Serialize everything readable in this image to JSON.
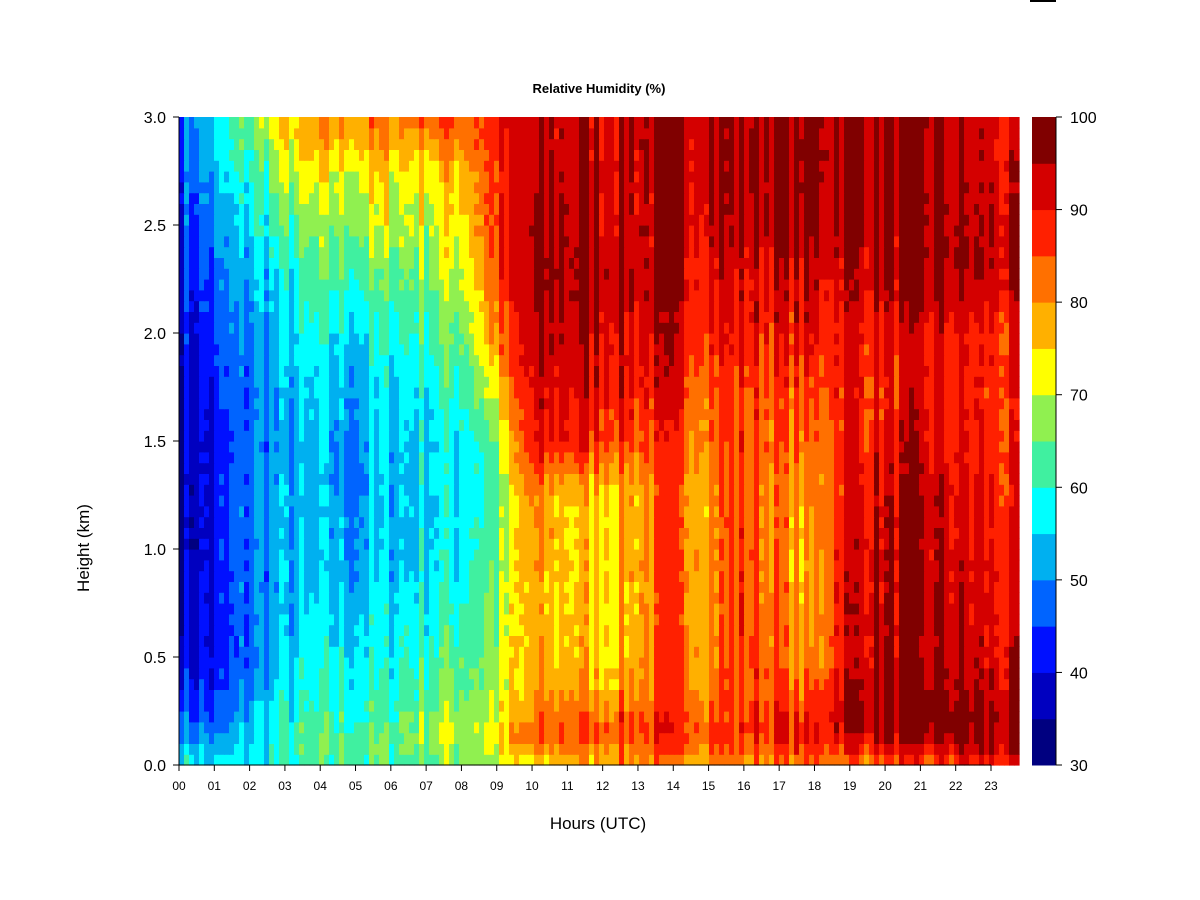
{
  "chart_data": {
    "type": "heatmap",
    "title": "Relative Humidity (%)",
    "xlabel": "Hours (UTC)",
    "ylabel": "Height (km)",
    "x_ticks": [
      "00",
      "01",
      "02",
      "03",
      "04",
      "05",
      "06",
      "07",
      "08",
      "09",
      "10",
      "11",
      "12",
      "13",
      "14",
      "15",
      "16",
      "17",
      "18",
      "19",
      "20",
      "21",
      "22",
      "23"
    ],
    "xlim": [
      0,
      24
    ],
    "y_ticks": [
      "0.0",
      "0.5",
      "1.0",
      "1.5",
      "2.0",
      "2.5",
      "3.0"
    ],
    "ylim": [
      0,
      3.0
    ],
    "colorbar": {
      "ticks": [
        "30",
        "40",
        "50",
        "60",
        "70",
        "80",
        "90",
        "100"
      ],
      "range": [
        30,
        100
      ],
      "levels": [
        30,
        35,
        40,
        45,
        50,
        55,
        60,
        65,
        70,
        75,
        80,
        85,
        90,
        95,
        100
      ],
      "colors": [
        "#000080",
        "#0000c0",
        "#0010ff",
        "#0064ff",
        "#00b0f0",
        "#00ffff",
        "#40f0a0",
        "#90f050",
        "#ffff00",
        "#ffb000",
        "#ff7000",
        "#ff2000",
        "#d40000",
        "#800000"
      ]
    },
    "x_hours": [
      0,
      1,
      2,
      3,
      4,
      5,
      6,
      7,
      8,
      9,
      10,
      11,
      12,
      13,
      14,
      15,
      16,
      17,
      18,
      19,
      20,
      21,
      22,
      23,
      24
    ],
    "y_km": [
      0.0,
      0.05,
      0.15,
      0.25,
      0.35,
      0.5,
      0.75,
      1.0,
      1.25,
      1.5,
      1.75,
      2.0,
      2.25,
      2.5,
      2.75,
      3.0
    ],
    "values": [
      [
        58,
        56,
        56,
        58,
        60,
        62,
        63,
        64,
        66,
        68,
        72,
        76,
        78,
        80,
        80,
        80,
        80,
        80,
        82,
        80,
        82,
        84,
        86,
        88,
        86
      ],
      [
        56,
        52,
        56,
        60,
        62,
        63,
        64,
        66,
        68,
        70,
        78,
        80,
        82,
        82,
        82,
        83,
        82,
        83,
        84,
        86,
        88,
        88,
        90,
        92,
        90
      ],
      [
        52,
        48,
        54,
        60,
        62,
        63,
        64,
        68,
        70,
        72,
        82,
        86,
        86,
        88,
        88,
        88,
        88,
        90,
        90,
        94,
        96,
        96,
        97,
        96,
        94
      ],
      [
        48,
        44,
        52,
        58,
        60,
        61,
        62,
        66,
        68,
        70,
        78,
        84,
        82,
        84,
        86,
        84,
        86,
        88,
        86,
        96,
        97,
        98,
        98,
        96,
        94
      ],
      [
        44,
        42,
        50,
        56,
        58,
        59,
        60,
        64,
        66,
        68,
        76,
        80,
        78,
        80,
        84,
        82,
        86,
        86,
        82,
        94,
        96,
        96,
        96,
        94,
        92
      ],
      [
        40,
        40,
        48,
        54,
        56,
        57,
        58,
        62,
        64,
        68,
        76,
        78,
        76,
        78,
        84,
        82,
        86,
        84,
        78,
        92,
        94,
        94,
        94,
        92,
        90
      ],
      [
        38,
        40,
        48,
        52,
        54,
        54,
        56,
        58,
        60,
        66,
        76,
        76,
        76,
        78,
        84,
        80,
        86,
        84,
        76,
        92,
        94,
        94,
        93,
        92,
        88
      ],
      [
        36,
        40,
        48,
        52,
        52,
        52,
        54,
        56,
        58,
        64,
        78,
        76,
        76,
        78,
        84,
        80,
        86,
        82,
        76,
        92,
        94,
        94,
        92,
        90,
        88
      ],
      [
        36,
        40,
        48,
        52,
        52,
        50,
        54,
        56,
        58,
        62,
        80,
        76,
        76,
        78,
        84,
        80,
        86,
        82,
        78,
        90,
        92,
        94,
        92,
        90,
        86
      ],
      [
        36,
        40,
        48,
        50,
        52,
        50,
        54,
        56,
        58,
        64,
        88,
        90,
        88,
        86,
        86,
        84,
        86,
        84,
        82,
        90,
        90,
        92,
        90,
        88,
        86
      ],
      [
        38,
        42,
        48,
        52,
        54,
        52,
        56,
        58,
        62,
        72,
        90,
        92,
        92,
        90,
        90,
        86,
        86,
        86,
        84,
        90,
        88,
        90,
        90,
        88,
        86
      ],
      [
        40,
        44,
        50,
        54,
        58,
        56,
        60,
        62,
        66,
        80,
        92,
        94,
        94,
        92,
        92,
        90,
        90,
        90,
        90,
        90,
        90,
        90,
        90,
        88,
        86
      ],
      [
        42,
        46,
        52,
        56,
        62,
        62,
        64,
        66,
        70,
        84,
        94,
        97,
        96,
        94,
        94,
        92,
        92,
        92,
        92,
        94,
        94,
        94,
        96,
        94,
        92
      ],
      [
        44,
        48,
        56,
        62,
        66,
        68,
        70,
        70,
        74,
        86,
        94,
        96,
        94,
        94,
        94,
        94,
        94,
        96,
        96,
        96,
        96,
        96,
        96,
        94,
        92
      ],
      [
        46,
        52,
        60,
        68,
        72,
        72,
        74,
        74,
        78,
        86,
        92,
        94,
        94,
        94,
        94,
        96,
        96,
        97,
        97,
        97,
        96,
        96,
        94,
        92,
        90
      ],
      [
        48,
        56,
        66,
        74,
        80,
        82,
        82,
        84,
        86,
        88,
        92,
        94,
        94,
        94,
        94,
        96,
        96,
        98,
        97,
        96,
        96,
        96,
        94,
        92,
        90
      ]
    ]
  }
}
